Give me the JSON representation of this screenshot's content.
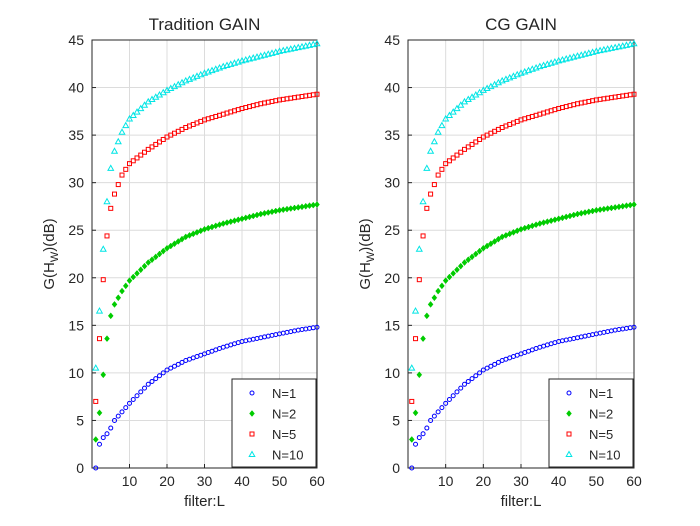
{
  "chart_data": [
    {
      "type": "scatter",
      "title": "Tradition GAIN",
      "xlabel": "filter:L",
      "ylabel_main": "G(H",
      "ylabel_sub": "W",
      "ylabel_tail": ")(dB)",
      "xlim": [
        0,
        60
      ],
      "ylim": [
        0,
        45
      ],
      "xticks": [
        10,
        20,
        30,
        40,
        50,
        60
      ],
      "yticks": [
        0,
        5,
        10,
        15,
        20,
        25,
        30,
        35,
        40,
        45
      ],
      "grid": true,
      "legend_position": "bottom-right",
      "x": [
        1,
        2,
        3,
        4,
        5,
        6,
        8,
        10,
        15,
        20,
        25,
        30,
        35,
        40,
        45,
        50,
        55,
        60
      ],
      "series": [
        {
          "name": "N=1",
          "color": "#0000ff",
          "marker": "circle",
          "values": [
            0.0,
            2.5,
            3.2,
            3.6,
            4.2,
            5.0,
            5.9,
            6.8,
            8.8,
            10.3,
            11.3,
            12.0,
            12.7,
            13.3,
            13.7,
            14.1,
            14.5,
            14.8
          ]
        },
        {
          "name": "N=2",
          "color": "#00cc00",
          "marker": "diamond",
          "values": [
            3.0,
            5.8,
            9.8,
            13.6,
            16.0,
            17.2,
            18.6,
            19.7,
            21.6,
            23.1,
            24.3,
            25.1,
            25.7,
            26.2,
            26.7,
            27.1,
            27.4,
            27.7
          ]
        },
        {
          "name": "N=5",
          "color": "#ff0000",
          "marker": "square",
          "values": [
            7.0,
            13.6,
            19.8,
            24.4,
            27.3,
            28.8,
            30.8,
            32.0,
            33.5,
            34.8,
            35.8,
            36.6,
            37.2,
            37.8,
            38.3,
            38.7,
            39.0,
            39.3
          ]
        },
        {
          "name": "N=10",
          "color": "#00e5e5",
          "marker": "triangle",
          "values": [
            10.5,
            16.5,
            23.0,
            28.0,
            31.5,
            33.3,
            35.3,
            36.7,
            38.5,
            39.7,
            40.7,
            41.5,
            42.2,
            42.8,
            43.3,
            43.8,
            44.2,
            44.6
          ]
        }
      ]
    },
    {
      "type": "scatter",
      "title": "CG GAIN",
      "xlabel": "filter:L",
      "ylabel_main": "G(H",
      "ylabel_sub": "W",
      "ylabel_tail": ")(dB)",
      "xlim": [
        0,
        60
      ],
      "ylim": [
        0,
        45
      ],
      "xticks": [
        10,
        20,
        30,
        40,
        50,
        60
      ],
      "yticks": [
        0,
        5,
        10,
        15,
        20,
        25,
        30,
        35,
        40,
        45
      ],
      "grid": true,
      "legend_position": "bottom-right",
      "x": [
        1,
        2,
        3,
        4,
        5,
        6,
        8,
        10,
        15,
        20,
        25,
        30,
        35,
        40,
        45,
        50,
        55,
        60
      ],
      "series": [
        {
          "name": "N=1",
          "color": "#0000ff",
          "marker": "circle",
          "values": [
            0.0,
            2.5,
            3.2,
            3.6,
            4.2,
            5.0,
            5.9,
            6.8,
            8.8,
            10.3,
            11.3,
            12.0,
            12.7,
            13.3,
            13.7,
            14.1,
            14.5,
            14.8
          ]
        },
        {
          "name": "N=2",
          "color": "#00cc00",
          "marker": "diamond",
          "values": [
            3.0,
            5.8,
            9.8,
            13.6,
            16.0,
            17.2,
            18.6,
            19.7,
            21.6,
            23.1,
            24.3,
            25.1,
            25.7,
            26.2,
            26.7,
            27.1,
            27.4,
            27.7
          ]
        },
        {
          "name": "N=5",
          "color": "#ff0000",
          "marker": "square",
          "values": [
            7.0,
            13.6,
            19.8,
            24.4,
            27.3,
            28.8,
            30.8,
            32.0,
            33.5,
            34.8,
            35.8,
            36.6,
            37.2,
            37.8,
            38.3,
            38.7,
            39.0,
            39.3
          ]
        },
        {
          "name": "N=10",
          "color": "#00e5e5",
          "marker": "triangle",
          "values": [
            10.5,
            16.5,
            23.0,
            28.0,
            31.5,
            33.3,
            35.3,
            36.7,
            38.5,
            39.7,
            40.7,
            41.5,
            42.2,
            42.8,
            43.3,
            43.8,
            44.2,
            44.6
          ]
        }
      ]
    }
  ]
}
